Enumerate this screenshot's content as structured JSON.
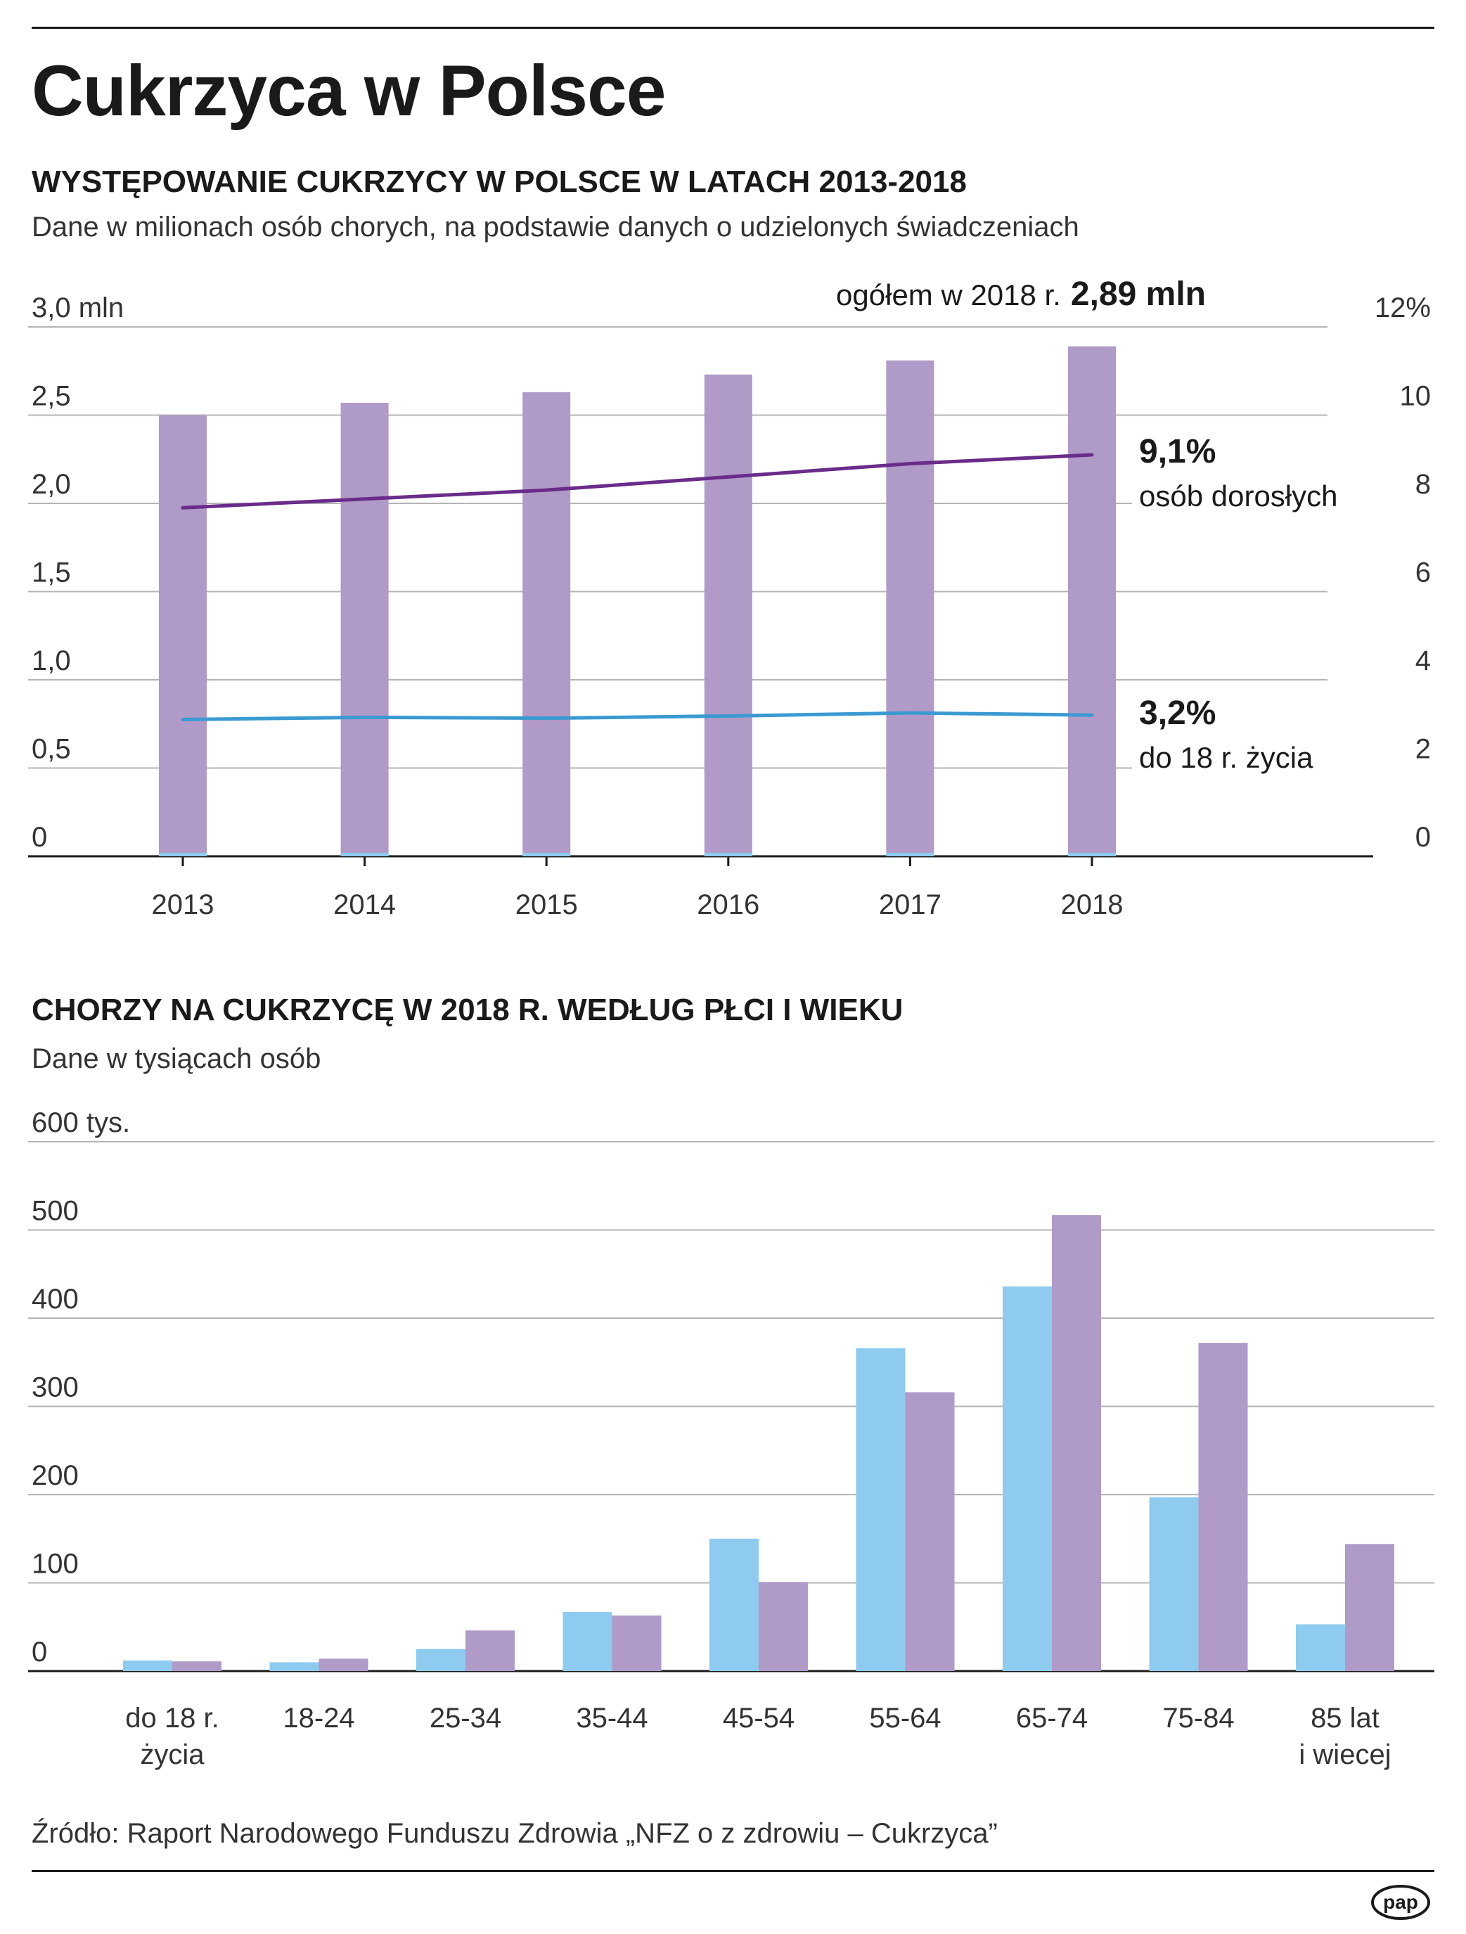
{
  "title": "Cukrzyca w Polsce",
  "colors": {
    "bar_purple": "#b09ac8",
    "bar_blue": "#8ecbef",
    "line_purple": "#6a2c8a",
    "line_blue": "#3a9ad1",
    "grid": "#b4b4b4",
    "text": "#1a1a1a"
  },
  "chart1": {
    "title": "WYSTĘPOWANIE CUKRZYCY W POLSCE W LATACH 2013-2018",
    "subtitle": "Dane w milionach osób chorych, na podstawie danych o udzielonych świadczeniach",
    "total_prefix": "ogółem w 2018 r.",
    "total_value": "2,89 mln",
    "adults_value": "9,1%",
    "adults_label": "osób dorosłych",
    "youth_value": "3,2%",
    "youth_label": "do 18 r. życia"
  },
  "chart2": {
    "title": "CHORZY NA CUKRZYCĘ W 2018 R. WEDŁUG PŁCI I WIEKU",
    "subtitle": "Dane w tysiącach osób"
  },
  "source": "Źródło: Raport Narodowego Funduszu Zdrowia „NFZ o z zdrowiu – Cukrzyca”",
  "logo_text": "pap",
  "chart_data": [
    {
      "type": "bar",
      "title": "WYSTĘPOWANIE CUKRZYCY W POLSCE W LATACH 2013-2018",
      "categories": [
        "2013",
        "2014",
        "2015",
        "2016",
        "2017",
        "2018"
      ],
      "ylim": [
        0,
        3.0
      ],
      "y_ticks": [
        0,
        0.5,
        1.0,
        1.5,
        2.0,
        2.5,
        3.0
      ],
      "y_tick_labels": [
        "0",
        "0,5",
        "1,0",
        "1,5",
        "2,0",
        "2,5",
        "3,0 mln"
      ],
      "y2lim": [
        0,
        12
      ],
      "y2_ticks": [
        0,
        2,
        4,
        6,
        8,
        10,
        12
      ],
      "y2_tick_labels": [
        "0",
        "2",
        "4",
        "6",
        "8",
        "10",
        "12%"
      ],
      "series": [
        {
          "name": "chorzy ogółem (mln)",
          "kind": "bar",
          "axis": "left",
          "values": [
            2.5,
            2.57,
            2.63,
            2.73,
            2.81,
            2.89
          ]
        },
        {
          "name": "chorzy do 18 r. życia (mln)",
          "kind": "bar",
          "axis": "left",
          "values": [
            0.02,
            0.02,
            0.02,
            0.02,
            0.02,
            0.02
          ]
        },
        {
          "name": "osób dorosłych (%)",
          "kind": "line",
          "axis": "right",
          "values": [
            7.9,
            8.1,
            8.3,
            8.6,
            8.9,
            9.1
          ]
        },
        {
          "name": "do 18 r. życia (%)",
          "kind": "line",
          "axis": "right",
          "values": [
            3.1,
            3.15,
            3.13,
            3.18,
            3.25,
            3.2
          ]
        }
      ]
    },
    {
      "type": "bar",
      "title": "CHORZY NA CUKRZYCĘ W 2018 R. WEDŁUG PŁCI I WIEKU",
      "categories": [
        "do 18 r.\nżycia",
        "18-24",
        "25-34",
        "35-44",
        "45-54",
        "55-64",
        "65-74",
        "75-84",
        "85 lat\ni wiecej"
      ],
      "ylim": [
        0,
        600
      ],
      "y_ticks": [
        0,
        100,
        200,
        300,
        400,
        500,
        600
      ],
      "y_tick_labels": [
        "0",
        "100",
        "200",
        "300",
        "400",
        "500",
        "600 tys."
      ],
      "series": [
        {
          "name": "blue",
          "values": [
            12,
            10,
            25,
            67,
            150,
            366,
            436,
            197,
            53
          ]
        },
        {
          "name": "purple",
          "values": [
            11,
            14,
            46,
            63,
            101,
            316,
            517,
            372,
            144
          ]
        }
      ]
    }
  ]
}
